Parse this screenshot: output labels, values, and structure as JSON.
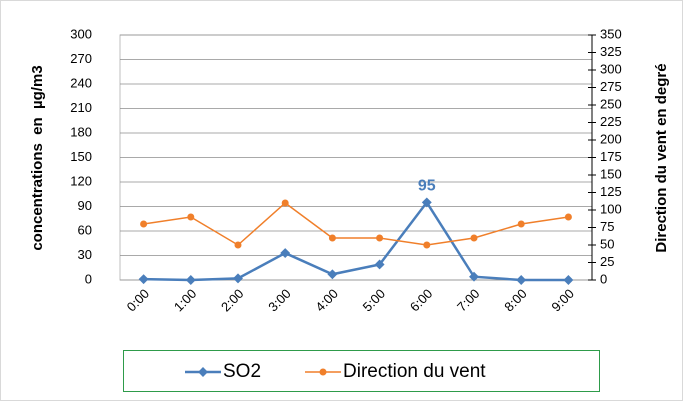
{
  "chart_data": {
    "type": "line",
    "categories": [
      "0:00",
      "1:00",
      "2:00",
      "3:00",
      "4:00",
      "5:00",
      "6:00",
      "7:00",
      "8:00",
      "9:00"
    ],
    "series": [
      {
        "name": "SO2",
        "color": "#4a7ebb",
        "values": [
          1,
          0,
          2,
          33,
          7,
          19,
          95,
          4,
          0,
          0
        ]
      },
      {
        "name": "Direction du vent",
        "color": "#f07f2a",
        "axis": "y2",
        "values": [
          80,
          90,
          50,
          110,
          60,
          60,
          50,
          60,
          80,
          90
        ]
      }
    ],
    "ylabel": "concentrations  en  µg/m3",
    "y2label": "Direction du vent en degré",
    "ylim": [
      0,
      300
    ],
    "yticks": [
      0,
      30,
      60,
      90,
      120,
      150,
      180,
      210,
      240,
      270,
      300
    ],
    "y2lim": [
      0,
      350
    ],
    "y2ticks": [
      0,
      25,
      50,
      75,
      100,
      125,
      150,
      175,
      200,
      225,
      250,
      275,
      300,
      325,
      350
    ],
    "grid": true,
    "legend": "bottom"
  }
}
